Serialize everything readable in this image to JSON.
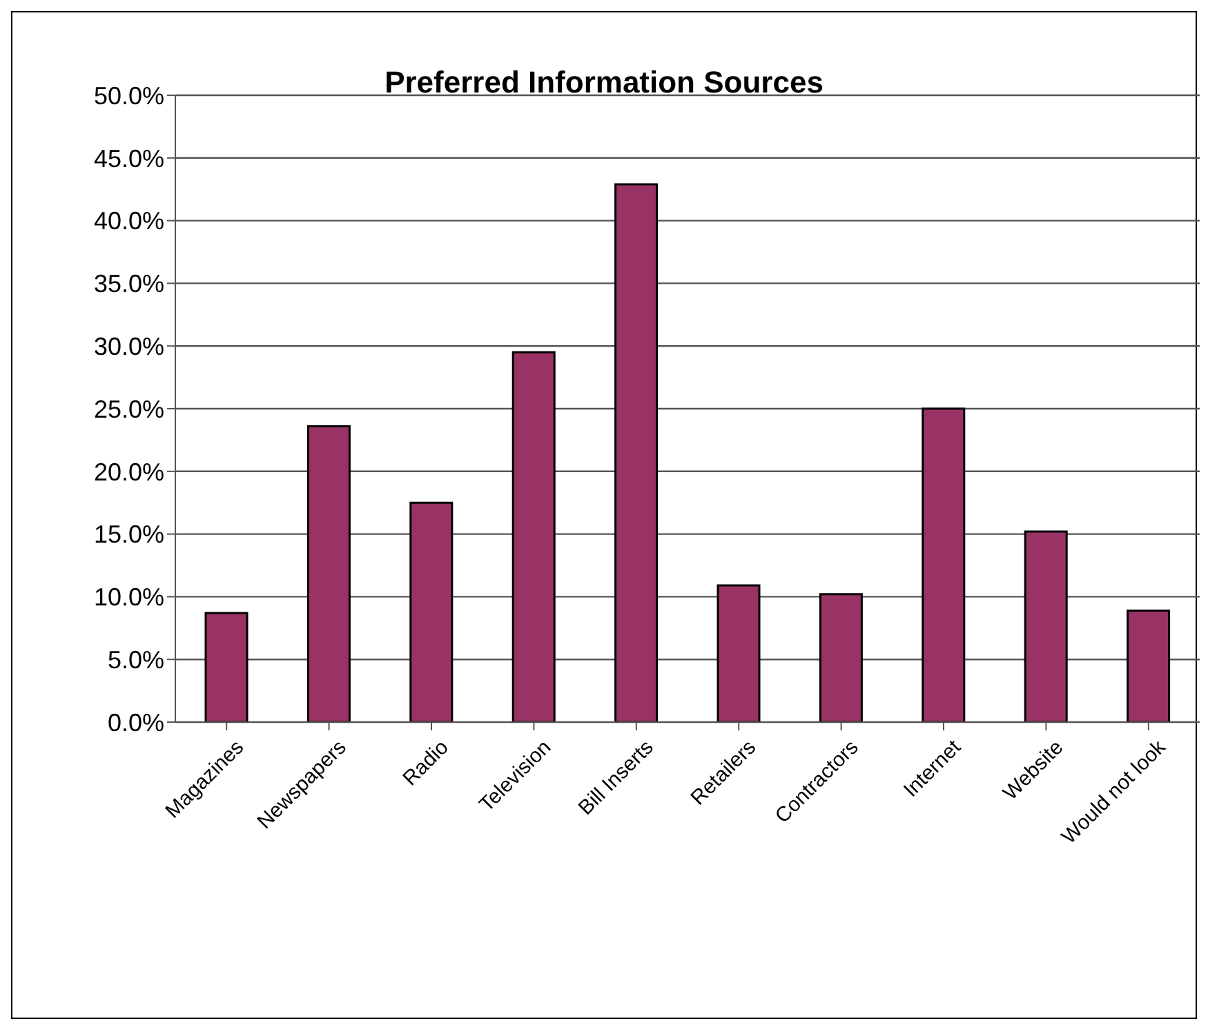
{
  "chart_data": {
    "type": "bar",
    "title": "Preferred Information Sources",
    "categories": [
      "Magazines",
      "Newspapers",
      "Radio",
      "Television",
      "Bill Inserts",
      "Retailers",
      "Contractors",
      "Internet",
      "Website",
      "Would not look"
    ],
    "values": [
      8.7,
      23.6,
      17.5,
      29.5,
      42.9,
      10.9,
      10.2,
      25.0,
      15.2,
      8.9
    ],
    "color": "#993366",
    "ylim": [
      0,
      50
    ],
    "yticks": [
      {
        "value": 0,
        "label": "0.0%"
      },
      {
        "value": 5,
        "label": "5.0%"
      },
      {
        "value": 10,
        "label": "10.0%"
      },
      {
        "value": 15,
        "label": "15.0%"
      },
      {
        "value": 20,
        "label": "20.0%"
      },
      {
        "value": 25,
        "label": "25.0%"
      },
      {
        "value": 30,
        "label": "30.0%"
      },
      {
        "value": 35,
        "label": "35.0%"
      },
      {
        "value": 40,
        "label": "40.0%"
      },
      {
        "value": 45,
        "label": "45.0%"
      },
      {
        "value": 50,
        "label": "50.0%"
      }
    ],
    "grid": "y",
    "legend": false
  }
}
